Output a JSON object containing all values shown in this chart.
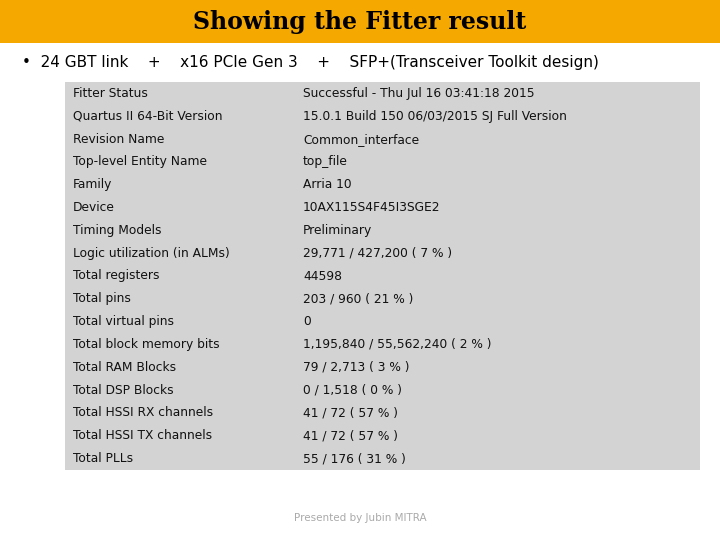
{
  "title": "Showing the Fitter result",
  "title_bg": "#F5A800",
  "title_color": "#000000",
  "bullet": "•  24 GBT link    +    x16 PCIe Gen 3    +    SFP+(Transceiver Toolkit design)",
  "subtitle_color": "#000000",
  "table_bg": "#D3D3D3",
  "table_rows": [
    [
      "Fitter Status",
      "Successful - Thu Jul 16 03:41:18 2015"
    ],
    [
      "Quartus II 64-Bit Version",
      "15.0.1 Build 150 06/03/2015 SJ Full Version"
    ],
    [
      "Revision Name",
      "Common_interface"
    ],
    [
      "Top-level Entity Name",
      "top_file"
    ],
    [
      "Family",
      "Arria 10"
    ],
    [
      "Device",
      "10AX115S4F45I3SGE2"
    ],
    [
      "Timing Models",
      "Preliminary"
    ],
    [
      "Logic utilization (in ALMs)",
      "29,771 / 427,200 ( 7 % )"
    ],
    [
      "Total registers",
      "44598"
    ],
    [
      "Total pins",
      "203 / 960 ( 21 % )"
    ],
    [
      "Total virtual pins",
      "0"
    ],
    [
      "Total block memory bits",
      "1,195,840 / 55,562,240 ( 2 % )"
    ],
    [
      "Total RAM Blocks",
      "79 / 2,713 ( 3 % )"
    ],
    [
      "Total DSP Blocks",
      "0 / 1,518 ( 0 % )"
    ],
    [
      "Total HSSI RX channels",
      "41 / 72 ( 57 % )"
    ],
    [
      "Total HSSI TX channels",
      "41 / 72 ( 57 % )"
    ],
    [
      "Total PLLs",
      "55 / 176 ( 31 % )"
    ]
  ],
  "footer": "Presented by Jubin MITRA",
  "footer_color": "#AAAAAA",
  "bg_color": "#FFFFFF",
  "title_fontsize": 17,
  "subtitle_fontsize": 11,
  "table_fontsize": 8.8,
  "footer_fontsize": 7.5
}
